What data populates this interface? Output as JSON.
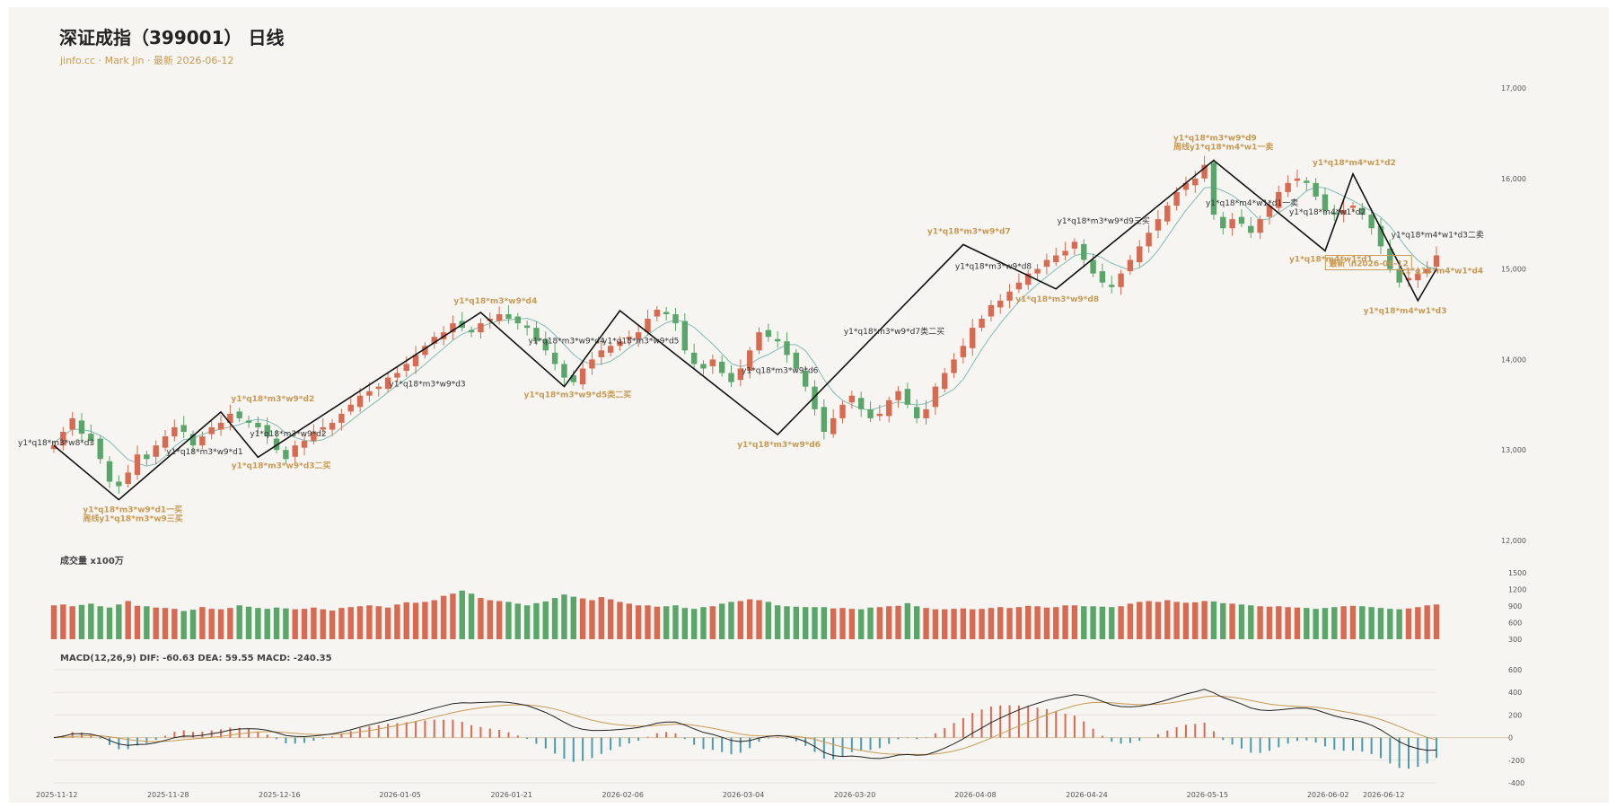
{
  "header": {
    "title": "深证成指（399001） 日线",
    "subtitle": "jinfo.cc · Mark Jin · 最新 2026-06-12"
  },
  "colors": {
    "up": "#d86a52",
    "down": "#5aa66a",
    "ma": "#7fbcb4",
    "zigzag": "#111111",
    "gold": "#c99a55",
    "dif": "#222222",
    "dea": "#c99a55",
    "macd_down": "#4a9bb0"
  },
  "chart_data": [
    {
      "type": "candlestick",
      "title": "深证成指（399001） 日线",
      "ylim": [
        12000,
        17000
      ],
      "y_ticks": [
        "12,000",
        "13,000",
        "14,000",
        "15,000",
        "16,000",
        "17,000"
      ],
      "x_ticks": [
        "2025-11-12",
        "2025-11-28",
        "2025-12-16",
        "2026-01-05",
        "2026-01-21",
        "2026-02-06",
        "2026-03-04",
        "2026-03-20",
        "2026-04-08",
        "2026-04-24",
        "2026-05-15",
        "2026-06-02",
        "2026-06-12"
      ],
      "close": [
        13050,
        13200,
        13350,
        13180,
        13100,
        12900,
        12650,
        12600,
        12750,
        12950,
        12900,
        13050,
        13150,
        13250,
        13200,
        13050,
        13150,
        13250,
        13300,
        13400,
        13350,
        13300,
        13250,
        13150,
        13000,
        12900,
        13050,
        13100,
        13200,
        13250,
        13300,
        13400,
        13500,
        13600,
        13650,
        13700,
        13800,
        13850,
        13950,
        14050,
        14150,
        14250,
        14300,
        14400,
        14350,
        14300,
        14400,
        14450,
        14500,
        14450,
        14400,
        14350,
        14200,
        14100,
        13950,
        13800,
        13750,
        13900,
        14000,
        14100,
        14150,
        14200,
        14250,
        14300,
        14450,
        14550,
        14500,
        14400,
        14100,
        13950,
        13900,
        14000,
        13850,
        13750,
        13900,
        14100,
        14300,
        14250,
        14200,
        14050,
        13900,
        13700,
        13450,
        13200,
        13350,
        13500,
        13600,
        13450,
        13350,
        13400,
        13550,
        13650,
        13500,
        13350,
        13450,
        13700,
        13850,
        14000,
        14150,
        14350,
        14450,
        14600,
        14650,
        14750,
        14850,
        14950,
        15000,
        15100,
        15150,
        15200,
        15300,
        15100,
        14950,
        14850,
        14800,
        14950,
        15100,
        15250,
        15400,
        15550,
        15700,
        15850,
        15950,
        16000,
        16150,
        15600,
        15450,
        15550,
        15500,
        15400,
        15550,
        15700,
        15850,
        15950,
        16000,
        15950,
        15800,
        15650,
        15600,
        15650,
        15700,
        15600,
        15450,
        15250,
        15000,
        14850,
        14900,
        14950,
        15000,
        15150
      ],
      "candles": 150,
      "ma_line": true,
      "zigzag_labels": [
        "y1*q18*m3*w8*d3",
        "y1*q18*m3*w9*d1一买",
        "周线y1*q18*m3*w9三买",
        "y1*q18*m3*w9*d1",
        "y1*q18*m3*w9*d2",
        "y1*q18*m3*w9*d2",
        "y1*q18*m3*w9*d3二买",
        "y1*q18*m3*w9*d3",
        "y1*q18*m3*w9*d4",
        "y1*q18*m3*w9*d4",
        "y1*q18*m3*w9*d5类二买",
        "y1*q18*m3*w9*d5",
        "y1*q18*m3*w9*d6",
        "y1*q18*m3*w9*d6",
        "y1*q18*m3*w9*d7类二买",
        "y1*q18*m3*w9*d7",
        "y1*q18*m3*w9*d8",
        "y1*q18*m3*w9*d8",
        "y1*q18*m3*w9*d9三买",
        "y1*q18*m3*w9*d9",
        "周线y1*q18*m4*w1一卖",
        "y1*q18*m4*w1*d1一卖",
        "y1*q18*m4*w1*d1",
        "y1*q18*m4*w1*d2",
        "y1*q18*m4*w1*d2",
        "y1*q18*m4*w1*d3二卖",
        "y1*q18*m4*w1*d3",
        "y1*q18*m4*w1*d4",
        "y1*q18*m4*w1*d4*",
        "最新 \\n2026-06-12"
      ]
    },
    {
      "type": "bar",
      "title": "成交量 x100万",
      "ylim": [
        0,
        1500
      ],
      "y_ticks": [
        "1500",
        "1200",
        "900",
        "600",
        "300"
      ],
      "values": [
        780,
        800,
        760,
        790,
        820,
        760,
        730,
        800,
        880,
        770,
        760,
        730,
        720,
        700,
        650,
        680,
        740,
        700,
        690,
        720,
        780,
        750,
        720,
        700,
        730,
        710,
        690,
        700,
        730,
        690,
        660,
        720,
        740,
        760,
        780,
        760,
        730,
        800,
        850,
        840,
        860,
        900,
        1000,
        1050,
        1120,
        1050,
        950,
        900,
        880,
        860,
        820,
        780,
        830,
        870,
        950,
        1030,
        980,
        940,
        900,
        970,
        920,
        860,
        820,
        780,
        780,
        750,
        760,
        780,
        720,
        700,
        740,
        760,
        820,
        860,
        880,
        920,
        900,
        860,
        780,
        760,
        750,
        740,
        740,
        740,
        710,
        720,
        700,
        690,
        730,
        740,
        760,
        770,
        830,
        760,
        720,
        690,
        690,
        700,
        710,
        690,
        700,
        720,
        740,
        720,
        740,
        770,
        760,
        730,
        740,
        780,
        780,
        760,
        760,
        750,
        740,
        760,
        820,
        860,
        880,
        860,
        900,
        860,
        840,
        850,
        880,
        870,
        830,
        820,
        800,
        780,
        760,
        750,
        760,
        740,
        730,
        720,
        700,
        720,
        740,
        760,
        770,
        760,
        740,
        720,
        700,
        690,
        710,
        740,
        780,
        800
      ]
    },
    {
      "type": "line",
      "title": "MACD(12,26,9) DIF: -60.63 DEA: 59.55 MACD: -240.35",
      "ylim": [
        -400,
        600
      ],
      "y_ticks": [
        "600",
        "400",
        "200",
        "0",
        "-200",
        "-400"
      ],
      "series": [
        {
          "name": "DIF"
        },
        {
          "name": "DEA"
        },
        {
          "name": "MACD"
        }
      ]
    }
  ]
}
